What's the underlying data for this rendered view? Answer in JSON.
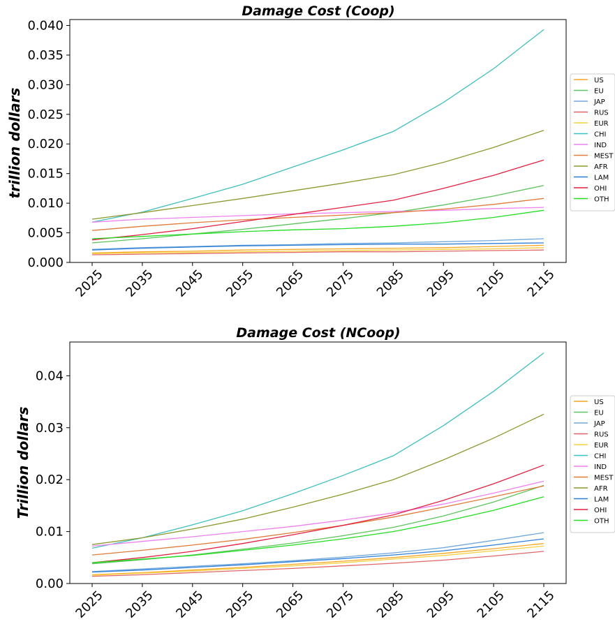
{
  "chart_data": [
    {
      "type": "line",
      "title": "Damage Cost (Coop)",
      "xlabel": "",
      "ylabel": "trillion dollars",
      "x": [
        2025,
        2035,
        2045,
        2055,
        2065,
        2075,
        2085,
        2095,
        2105,
        2115
      ],
      "ylim": [
        0,
        0.041
      ],
      "yticks": [
        0.0,
        0.005,
        0.01,
        0.015,
        0.02,
        0.025,
        0.03,
        0.035,
        0.04
      ],
      "ytick_labels": [
        "0.000",
        "0.005",
        "0.010",
        "0.015",
        "0.020",
        "0.025",
        "0.030",
        "0.035",
        "0.040"
      ],
      "xtick_labels": [
        "2025",
        "2035",
        "2045",
        "2055",
        "2065",
        "2075",
        "2085",
        "2095",
        "2105",
        "2115"
      ],
      "legend_position": "right",
      "grid": false,
      "series": [
        {
          "name": "US",
          "color": "#f5a623",
          "values": [
            0.0016,
            0.0018,
            0.0019,
            0.0021,
            0.0022,
            0.0023,
            0.0024,
            0.0025,
            0.0027,
            0.0029
          ]
        },
        {
          "name": "EU",
          "color": "#5cc45c",
          "values": [
            0.0033,
            0.004,
            0.0048,
            0.0056,
            0.0065,
            0.0074,
            0.0084,
            0.0097,
            0.0112,
            0.013
          ]
        },
        {
          "name": "JAP",
          "color": "#6fa8dc",
          "values": [
            0.0022,
            0.0025,
            0.0027,
            0.0029,
            0.003,
            0.0032,
            0.0033,
            0.0035,
            0.0037,
            0.004
          ]
        },
        {
          "name": "RUS",
          "color": "#e06666",
          "values": [
            0.0013,
            0.0014,
            0.0015,
            0.0016,
            0.0017,
            0.0018,
            0.0018,
            0.0019,
            0.002,
            0.0021
          ]
        },
        {
          "name": "EUR",
          "color": "#f6d03f",
          "values": [
            0.0015,
            0.0016,
            0.0017,
            0.0018,
            0.0019,
            0.002,
            0.0021,
            0.0022,
            0.0023,
            0.0025
          ]
        },
        {
          "name": "CHI",
          "color": "#3fbfbf",
          "values": [
            0.0068,
            0.0085,
            0.0108,
            0.0132,
            0.0161,
            0.019,
            0.0221,
            0.027,
            0.0327,
            0.0393
          ]
        },
        {
          "name": "IND",
          "color": "#ee82ee",
          "values": [
            0.0068,
            0.0073,
            0.0076,
            0.0079,
            0.0082,
            0.0084,
            0.0086,
            0.0088,
            0.0091,
            0.0093
          ]
        },
        {
          "name": "MEST",
          "color": "#e07b39",
          "values": [
            0.0054,
            0.0061,
            0.0067,
            0.0072,
            0.0076,
            0.008,
            0.0084,
            0.009,
            0.0098,
            0.0108
          ]
        },
        {
          "name": "AFR",
          "color": "#8b9a2f",
          "values": [
            0.0073,
            0.0084,
            0.0096,
            0.0108,
            0.0121,
            0.0134,
            0.0148,
            0.0169,
            0.0194,
            0.0223
          ]
        },
        {
          "name": "LAM",
          "color": "#2f7fd6",
          "values": [
            0.0021,
            0.0024,
            0.0026,
            0.0028,
            0.0029,
            0.003,
            0.0031,
            0.0031,
            0.0032,
            0.0033
          ]
        },
        {
          "name": "OHI",
          "color": "#e0203f",
          "values": [
            0.0038,
            0.0047,
            0.0057,
            0.0069,
            0.0081,
            0.0093,
            0.0105,
            0.0125,
            0.0147,
            0.0173
          ]
        },
        {
          "name": "OTH",
          "color": "#22dd22",
          "values": [
            0.004,
            0.0044,
            0.0048,
            0.0052,
            0.0055,
            0.0057,
            0.0061,
            0.0067,
            0.0076,
            0.0088
          ]
        }
      ]
    },
    {
      "type": "line",
      "title": "Damage Cost (NCoop)",
      "xlabel": "",
      "ylabel": "Trillion dollars",
      "x": [
        2025,
        2035,
        2045,
        2055,
        2065,
        2075,
        2085,
        2095,
        2105,
        2115
      ],
      "ylim": [
        0,
        0.0465
      ],
      "yticks": [
        0.0,
        0.01,
        0.02,
        0.03,
        0.04
      ],
      "ytick_labels": [
        "0.00",
        "0.01",
        "0.02",
        "0.03",
        "0.04"
      ],
      "xtick_labels": [
        "2025",
        "2035",
        "2045",
        "2055",
        "2065",
        "2075",
        "2085",
        "2095",
        "2105",
        "2115"
      ],
      "legend_position": "right",
      "grid": false,
      "series": [
        {
          "name": "US",
          "color": "#f5a623",
          "values": [
            0.0017,
            0.0021,
            0.0026,
            0.0031,
            0.0037,
            0.0043,
            0.005,
            0.0058,
            0.0067,
            0.0077
          ]
        },
        {
          "name": "EU",
          "color": "#5cc45c",
          "values": [
            0.0038,
            0.0046,
            0.0055,
            0.0066,
            0.0078,
            0.0092,
            0.0108,
            0.013,
            0.0157,
            0.0189
          ]
        },
        {
          "name": "JAP",
          "color": "#6fa8dc",
          "values": [
            0.0023,
            0.0028,
            0.0033,
            0.0038,
            0.0044,
            0.0051,
            0.0059,
            0.0069,
            0.0083,
            0.0098
          ]
        },
        {
          "name": "RUS",
          "color": "#e06666",
          "values": [
            0.0014,
            0.0017,
            0.0021,
            0.0025,
            0.0029,
            0.0034,
            0.0039,
            0.0045,
            0.0053,
            0.0062
          ]
        },
        {
          "name": "EUR",
          "color": "#f6d03f",
          "values": [
            0.0016,
            0.002,
            0.0024,
            0.0029,
            0.0034,
            0.004,
            0.0047,
            0.0054,
            0.0063,
            0.0072
          ]
        },
        {
          "name": "CHI",
          "color": "#3fbfbf",
          "values": [
            0.0068,
            0.0088,
            0.0113,
            0.014,
            0.0173,
            0.0208,
            0.0246,
            0.0304,
            0.037,
            0.0444
          ]
        },
        {
          "name": "IND",
          "color": "#ee82ee",
          "values": [
            0.0072,
            0.0081,
            0.009,
            0.01,
            0.011,
            0.0122,
            0.0136,
            0.0153,
            0.0174,
            0.0197
          ]
        },
        {
          "name": "MEST",
          "color": "#e07b39",
          "values": [
            0.0055,
            0.0064,
            0.0074,
            0.0085,
            0.0098,
            0.0112,
            0.0128,
            0.0147,
            0.0167,
            0.0188
          ]
        },
        {
          "name": "AFR",
          "color": "#8b9a2f",
          "values": [
            0.0075,
            0.0088,
            0.0105,
            0.0124,
            0.0147,
            0.0172,
            0.02,
            0.0238,
            0.028,
            0.0326
          ]
        },
        {
          "name": "LAM",
          "color": "#2f7fd6",
          "values": [
            0.0022,
            0.0026,
            0.0031,
            0.0036,
            0.0042,
            0.0048,
            0.0055,
            0.0063,
            0.0074,
            0.0086
          ]
        },
        {
          "name": "OHI",
          "color": "#e0203f",
          "values": [
            0.004,
            0.005,
            0.0062,
            0.0077,
            0.0094,
            0.0112,
            0.0132,
            0.016,
            0.0192,
            0.0228
          ]
        },
        {
          "name": "OTH",
          "color": "#22dd22",
          "values": [
            0.004,
            0.0047,
            0.0054,
            0.0064,
            0.0074,
            0.0086,
            0.01,
            0.0119,
            0.0141,
            0.0167
          ]
        }
      ]
    }
  ]
}
